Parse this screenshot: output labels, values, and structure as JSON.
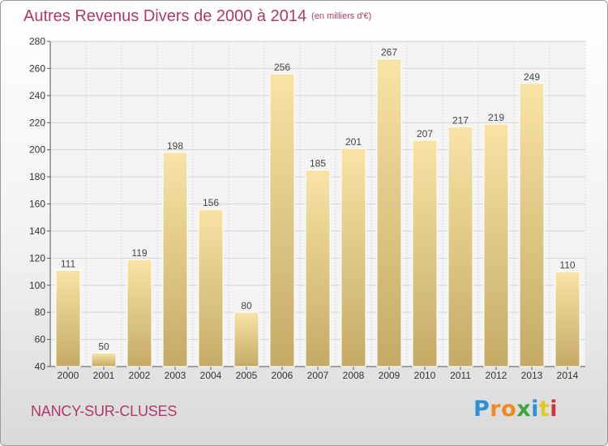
{
  "chart_data": {
    "type": "bar",
    "title": "Autres Revenus Divers de 2000 à 2014",
    "unit": "(en milliers d'€)",
    "categories": [
      "2000",
      "2001",
      "2002",
      "2003",
      "2004",
      "2005",
      "2006",
      "2007",
      "2008",
      "2009",
      "2010",
      "2011",
      "2012",
      "2013",
      "2014"
    ],
    "values": [
      111,
      50,
      119,
      198,
      156,
      80,
      256,
      185,
      201,
      267,
      207,
      217,
      219,
      249,
      110
    ],
    "ylim": [
      40,
      280
    ],
    "yticks": [
      40,
      60,
      80,
      100,
      120,
      140,
      160,
      180,
      200,
      220,
      240,
      260,
      280
    ],
    "grid": true,
    "bar_color": "#e8d08f"
  },
  "location": "NANCY-SUR-CLUSES",
  "logo": {
    "letters": [
      "P",
      "r",
      "o",
      "x",
      "i",
      "t",
      "i"
    ],
    "colors": [
      "#2f8fd6",
      "#f08a1e",
      "#f08a1e",
      "#3da63d",
      "#2f8fd6",
      "#e0cc1f",
      "#d8303a"
    ]
  }
}
